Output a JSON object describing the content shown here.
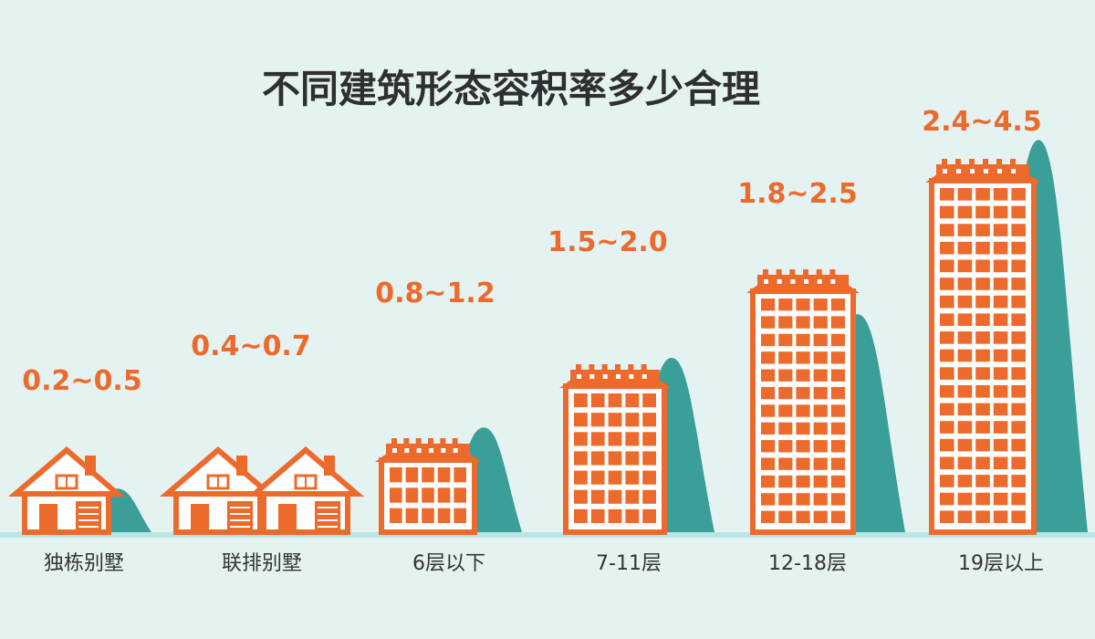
{
  "chart_data": {
    "type": "bar",
    "title": "不同建筑形态容积率多少合理",
    "xlabel": "",
    "ylabel": "",
    "ylim": [
      0,
      5
    ],
    "grid": false,
    "legend": "none",
    "categories": [
      "独栋别墅",
      "联排别墅",
      "6层以下",
      "7-11层",
      "12-18层",
      "19层以上"
    ],
    "ranges": [
      {
        "low": 0.2,
        "high": 0.5,
        "label": "0.2~0.5"
      },
      {
        "low": 0.4,
        "high": 0.7,
        "label": "0.4~0.7"
      },
      {
        "low": 0.8,
        "high": 1.2,
        "label": "0.8~1.2"
      },
      {
        "low": 1.5,
        "high": 2.0,
        "label": "1.5~2.0"
      },
      {
        "low": 1.8,
        "high": 2.5,
        "label": "1.8~2.5"
      },
      {
        "low": 2.4,
        "high": 4.5,
        "label": "2.4~4.5"
      }
    ],
    "icons": [
      "detached-house",
      "townhouse",
      "low-rise-building",
      "mid-rise-building",
      "high-rise-building",
      "tower-building"
    ]
  },
  "colors": {
    "background": "#e4f3f2",
    "hill": "#3a9e99",
    "building": "#ec6a2c",
    "label": "#ec6a2c",
    "title": "#2f2f2f",
    "axis_text": "#333333",
    "baseline": "#b9e6e3"
  }
}
